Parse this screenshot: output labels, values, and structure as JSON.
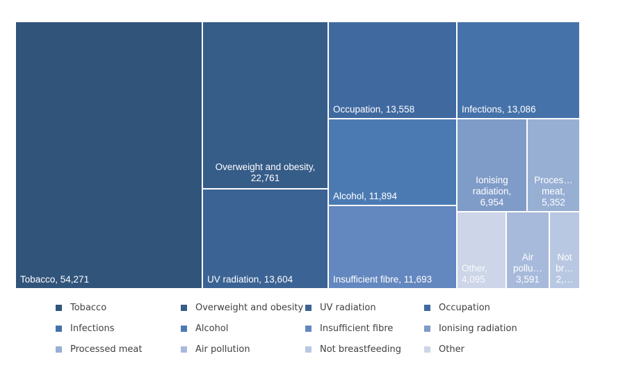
{
  "chart_data": {
    "type": "treemap",
    "title": "",
    "series": [
      {
        "name": "Tobacco",
        "value": 54271,
        "label": "Tobacco,  54,271",
        "color": "#31547b"
      },
      {
        "name": "Overweight and obesity",
        "value": 22761,
        "label": "Overweight and obesity, 22,761",
        "color": "#365c88"
      },
      {
        "name": "UV radiation",
        "value": 13604,
        "label": "UV radiation,  13,604",
        "color": "#3b6394"
      },
      {
        "name": "Occupation",
        "value": 13558,
        "label": "Occupation,  13,558",
        "color": "#4069a0"
      },
      {
        "name": "Infections",
        "value": 13086,
        "label": "Infections,  13,086",
        "color": "#4672aa"
      },
      {
        "name": "Alcohol",
        "value": 11894,
        "label": "Alcohol,  11,894",
        "color": "#4b7ab3"
      },
      {
        "name": "Insufficient fibre",
        "value": 11693,
        "label": "Insufficient fibre,  11,693",
        "color": "#6387bf"
      },
      {
        "name": "Ionising radiation",
        "value": 6954,
        "label": "Ionising radiation, 6,954",
        "color": "#7f9bc8"
      },
      {
        "name": "Processed meat",
        "value": 5352,
        "label": "Proces… meat, 5,352",
        "color": "#97afd3"
      },
      {
        "name": "Air pollution",
        "value": 3591,
        "label": "Air pollu… 3,591",
        "color": "#a8badb"
      },
      {
        "name": "Not breastfeeding",
        "value": 2400,
        "label": "Not br… 2,…",
        "color": "#b9c8e2"
      },
      {
        "name": "Other",
        "value": 4095,
        "label": "Other, 4,095",
        "color": "#cdd6e8"
      }
    ],
    "legend": {
      "position": "bottom",
      "items": [
        "Tobacco",
        "Overweight and obesity",
        "UV radiation",
        "Occupation",
        "Infections",
        "Alcohol",
        "Insufficient fibre",
        "Ionising radiation",
        "Processed meat",
        "Air pollution",
        "Not breastfeeding",
        "Other"
      ]
    }
  }
}
